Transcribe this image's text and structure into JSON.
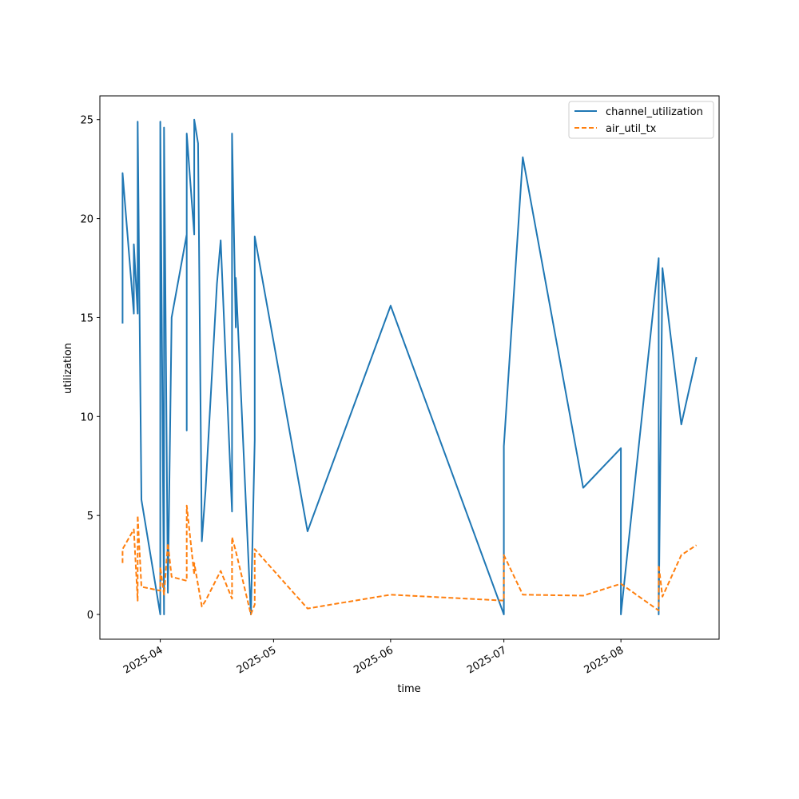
{
  "chart_data": {
    "type": "line",
    "title": "",
    "xlabel": "time",
    "ylabel": "utilization",
    "x_ticks": [
      "2025-04",
      "2025-05",
      "2025-06",
      "2025-07",
      "2025-08"
    ],
    "y_ticks": [
      0,
      5,
      10,
      15,
      20,
      25
    ],
    "xlim": [
      "2025-03-16",
      "2025-08-27"
    ],
    "ylim": [
      -1.25,
      26.2
    ],
    "legend_placement": "top-right",
    "grid": false,
    "series": [
      {
        "name": "channel_utilization",
        "color": "#1f77b4",
        "style": "solid",
        "points": [
          [
            "2025-03-22",
            14.7
          ],
          [
            "2025-03-22",
            22.3
          ],
          [
            "2025-03-25",
            15.2
          ],
          [
            "2025-03-25",
            18.7
          ],
          [
            "2025-03-26",
            15.2
          ],
          [
            "2025-03-26",
            24.9
          ],
          [
            "2025-03-27",
            5.8
          ],
          [
            "2025-04-01",
            0.0
          ],
          [
            "2025-04-01",
            24.9
          ],
          [
            "2025-04-02",
            0.0
          ],
          [
            "2025-04-02",
            24.6
          ],
          [
            "2025-04-03",
            1.1
          ],
          [
            "2025-04-04",
            15.0
          ],
          [
            "2025-04-08",
            19.2
          ],
          [
            "2025-04-08",
            22.0
          ],
          [
            "2025-04-08",
            9.3
          ],
          [
            "2025-04-08",
            24.3
          ],
          [
            "2025-04-10",
            19.2
          ],
          [
            "2025-04-10",
            25.0
          ],
          [
            "2025-04-11",
            23.8
          ],
          [
            "2025-04-12",
            3.7
          ],
          [
            "2025-04-13",
            6.3
          ],
          [
            "2025-04-16",
            16.7
          ],
          [
            "2025-04-17",
            18.9
          ],
          [
            "2025-04-20",
            5.2
          ],
          [
            "2025-04-20",
            24.3
          ],
          [
            "2025-04-21",
            14.5
          ],
          [
            "2025-04-21",
            17.0
          ],
          [
            "2025-04-25",
            0.0
          ],
          [
            "2025-04-26",
            8.8
          ],
          [
            "2025-04-26",
            17.5
          ],
          [
            "2025-04-26",
            9.8
          ],
          [
            "2025-04-26",
            19.1
          ],
          [
            "2025-05-10",
            4.2
          ],
          [
            "2025-06-01",
            15.6
          ],
          [
            "2025-07-01",
            0.0
          ],
          [
            "2025-07-01",
            8.5
          ],
          [
            "2025-07-06",
            23.1
          ],
          [
            "2025-07-22",
            6.4
          ],
          [
            "2025-08-01",
            8.4
          ],
          [
            "2025-08-01",
            0.0
          ],
          [
            "2025-08-11",
            18.0
          ],
          [
            "2025-08-11",
            0.0
          ],
          [
            "2025-08-12",
            17.5
          ],
          [
            "2025-08-17",
            9.6
          ],
          [
            "2025-08-21",
            13.0
          ]
        ]
      },
      {
        "name": "air_util_tx",
        "color": "#ff7f0e",
        "style": "dashed",
        "points": [
          [
            "2025-03-22",
            2.6
          ],
          [
            "2025-03-22",
            3.3
          ],
          [
            "2025-03-25",
            4.3
          ],
          [
            "2025-03-26",
            0.7
          ],
          [
            "2025-03-26",
            5.0
          ],
          [
            "2025-03-27",
            1.4
          ],
          [
            "2025-04-01",
            1.2
          ],
          [
            "2025-04-01",
            2.4
          ],
          [
            "2025-04-02",
            1.0
          ],
          [
            "2025-04-03",
            3.6
          ],
          [
            "2025-04-04",
            1.9
          ],
          [
            "2025-04-08",
            1.7
          ],
          [
            "2025-04-08",
            5.5
          ],
          [
            "2025-04-10",
            2.0
          ],
          [
            "2025-04-10",
            2.6
          ],
          [
            "2025-04-12",
            0.4
          ],
          [
            "2025-04-13",
            0.7
          ],
          [
            "2025-04-17",
            2.2
          ],
          [
            "2025-04-20",
            0.8
          ],
          [
            "2025-04-20",
            3.9
          ],
          [
            "2025-04-21",
            3.2
          ],
          [
            "2025-04-25",
            0.0
          ],
          [
            "2025-04-26",
            0.5
          ],
          [
            "2025-04-26",
            3.3
          ],
          [
            "2025-05-10",
            0.3
          ],
          [
            "2025-06-01",
            1.0
          ],
          [
            "2025-07-01",
            0.7
          ],
          [
            "2025-07-01",
            3.0
          ],
          [
            "2025-07-06",
            1.0
          ],
          [
            "2025-07-22",
            0.95
          ],
          [
            "2025-08-01",
            1.55
          ],
          [
            "2025-08-11",
            0.2
          ],
          [
            "2025-08-11",
            2.5
          ],
          [
            "2025-08-12",
            0.9
          ],
          [
            "2025-08-17",
            3.0
          ],
          [
            "2025-08-21",
            3.5
          ]
        ]
      }
    ]
  }
}
